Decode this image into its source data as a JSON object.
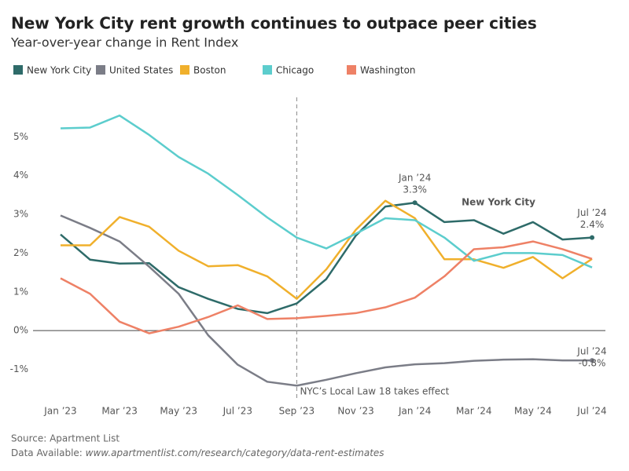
{
  "chart_data": {
    "type": "line",
    "title": "New York City rent growth continues to outpace peer cities",
    "subtitle": "Year-over-year change in Rent Index",
    "categories": [
      "Jan ’23",
      null,
      "Mar ’23",
      null,
      "May ’23",
      null,
      "Jul ’23",
      null,
      "Sep ’23",
      null,
      "Nov ’23",
      null,
      "Jan ’24",
      null,
      "Mar ’24",
      null,
      "May ’24",
      null,
      "Jul ’24"
    ],
    "series": [
      {
        "name": "New York City",
        "color": "#2e6b69",
        "values": [
          2.48,
          1.83,
          1.73,
          1.74,
          1.12,
          0.82,
          0.56,
          0.45,
          0.7,
          1.33,
          2.45,
          3.2,
          3.3,
          2.8,
          2.85,
          2.5,
          2.8,
          2.35,
          2.4
        ],
        "value_labels": [
          null,
          null,
          null,
          null,
          null,
          null,
          null,
          null,
          null,
          null,
          null,
          null,
          "3.3%",
          null,
          null,
          null,
          null,
          null,
          "2.4%"
        ]
      },
      {
        "name": "United States",
        "color": "#7b7d87",
        "values": [
          2.97,
          2.65,
          2.3,
          1.65,
          0.95,
          -0.12,
          -0.88,
          -1.32,
          -1.42,
          -1.27,
          -1.1,
          -0.95,
          -0.87,
          -0.84,
          -0.78,
          -0.75,
          -0.74,
          -0.77,
          -0.77
        ],
        "value_labels": [
          null,
          null,
          null,
          null,
          null,
          null,
          null,
          null,
          null,
          null,
          null,
          null,
          null,
          null,
          null,
          null,
          null,
          null,
          "-0.8%"
        ]
      },
      {
        "name": "Boston",
        "color": "#f0b02c",
        "values": [
          2.2,
          2.2,
          2.93,
          2.68,
          2.06,
          1.66,
          1.69,
          1.4,
          0.82,
          1.58,
          2.6,
          3.35,
          2.9,
          1.84,
          1.84,
          1.62,
          1.9,
          1.35,
          1.85
        ]
      },
      {
        "name": "Chicago",
        "color": "#5ccdcd",
        "values": [
          5.22,
          5.24,
          5.55,
          5.05,
          4.48,
          4.05,
          3.5,
          2.92,
          2.4,
          2.12,
          2.5,
          2.9,
          2.85,
          2.4,
          1.8,
          2.0,
          2.0,
          1.95,
          1.63
        ]
      },
      {
        "name": "Washington",
        "color": "#ee8166",
        "values": [
          1.35,
          0.95,
          0.23,
          -0.07,
          0.1,
          0.35,
          0.65,
          0.3,
          0.32,
          0.38,
          0.45,
          0.6,
          0.85,
          1.4,
          2.1,
          2.15,
          2.3,
          2.1,
          1.85
        ]
      }
    ],
    "ylim": [
      -1.8,
      6.1
    ],
    "yticks": [
      {
        "value": -1,
        "label": "-1%"
      },
      {
        "value": 0,
        "label": "0%"
      },
      {
        "value": 1,
        "label": "1%"
      },
      {
        "value": 2,
        "label": "2%"
      },
      {
        "value": 3,
        "label": "3%"
      },
      {
        "value": 4,
        "label": "4%"
      },
      {
        "value": 5,
        "label": "5%"
      }
    ],
    "event_line": {
      "at": "Sep ’23",
      "label": "NYC’s Local Law 18 takes effect"
    },
    "inline_label_series": "New York City",
    "source": "Source: Apartment List",
    "data_note": "Data Available:",
    "data_url": "www.apartmentlist.com/research/category/data-rent-estimates"
  }
}
